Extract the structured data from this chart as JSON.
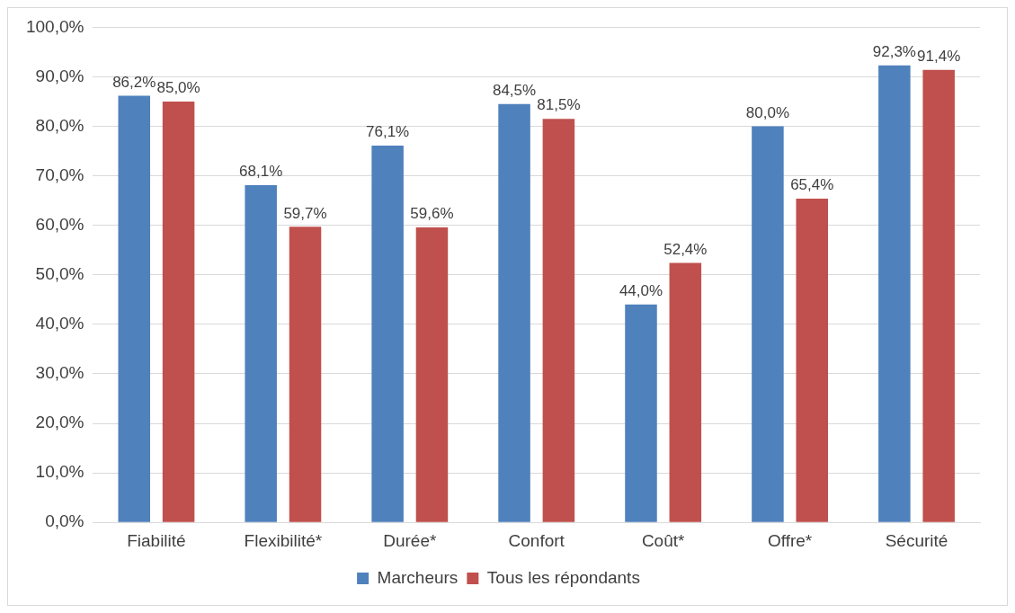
{
  "chart_data": {
    "type": "bar",
    "categories": [
      "Fiabilité",
      "Flexibilité*",
      "Durée*",
      "Confort",
      "Coût*",
      "Offre*",
      "Sécurité"
    ],
    "series": [
      {
        "name": "Marcheurs",
        "color": "#4f81bd",
        "values": [
          86.2,
          68.1,
          76.1,
          84.5,
          44.0,
          80.0,
          92.3
        ],
        "value_labels": [
          "86,2%",
          "68,1%",
          "76,1%",
          "84,5%",
          "44,0%",
          "80,0%",
          "92,3%"
        ]
      },
      {
        "name": "Tous les répondants",
        "color": "#c0504d",
        "values": [
          85.0,
          59.7,
          59.6,
          81.5,
          52.4,
          65.4,
          91.4
        ],
        "value_labels": [
          "85,0%",
          "59,7%",
          "59,6%",
          "81,5%",
          "52,4%",
          "65,4%",
          "91,4%"
        ]
      }
    ],
    "ylim": [
      0,
      100
    ],
    "yticks": [
      {
        "value": 0,
        "label": "0,0%"
      },
      {
        "value": 10,
        "label": "10,0%"
      },
      {
        "value": 20,
        "label": "20,0%"
      },
      {
        "value": 30,
        "label": "30,0%"
      },
      {
        "value": 40,
        "label": "40,0%"
      },
      {
        "value": 50,
        "label": "50,0%"
      },
      {
        "value": 60,
        "label": "60,0%"
      },
      {
        "value": 70,
        "label": "70,0%"
      },
      {
        "value": 80,
        "label": "80,0%"
      },
      {
        "value": 90,
        "label": "90,0%"
      },
      {
        "value": 100,
        "label": "100,0%"
      }
    ],
    "grid": "y",
    "legend": "bottom"
  }
}
